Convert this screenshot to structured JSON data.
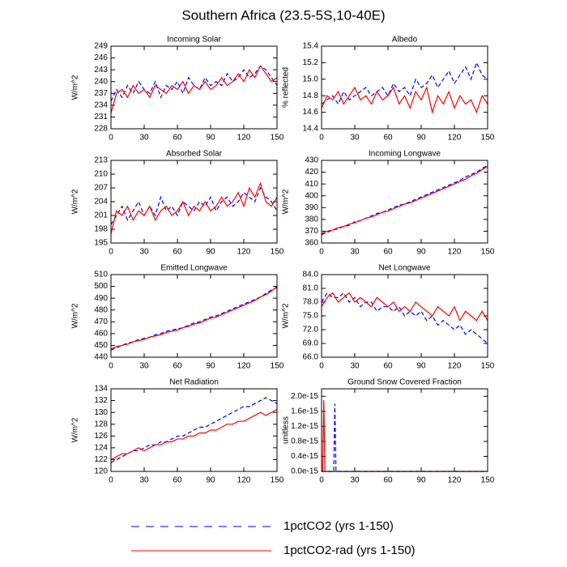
{
  "title": "Southern Africa (23.5-5S,10-40E)",
  "legend": [
    {
      "name": "1pctCO2 (yrs 1-150)",
      "color": "#0000ff",
      "dashed": true
    },
    {
      "name": "1pctCO2-rad (yrs 1-150)",
      "color": "#ff0000",
      "dashed": false
    }
  ],
  "chart_data": [
    {
      "type": "line",
      "title": "Incoming Solar",
      "ylabel": "W/m^2",
      "xlim": [
        0,
        150
      ],
      "xticks": [
        0,
        30,
        60,
        90,
        120,
        150
      ],
      "ylim": [
        228,
        249
      ],
      "yticks": [
        228,
        231,
        234,
        237,
        240,
        243,
        246,
        249
      ],
      "x": [
        0,
        5,
        10,
        15,
        20,
        25,
        30,
        35,
        40,
        45,
        50,
        55,
        60,
        65,
        70,
        75,
        80,
        85,
        90,
        95,
        100,
        105,
        110,
        115,
        120,
        125,
        130,
        135,
        140,
        145,
        150
      ],
      "series": [
        {
          "color": "#0000ff",
          "dashed": true,
          "values": [
            235,
            238,
            236,
            239,
            237,
            240,
            238,
            237,
            240,
            236,
            239,
            238,
            240,
            237,
            241,
            239,
            238,
            241,
            239,
            240,
            239,
            242,
            240,
            241,
            243,
            241,
            242,
            244,
            243,
            241,
            239
          ]
        },
        {
          "color": "#ff0000",
          "dashed": false,
          "values": [
            232,
            237,
            238,
            236,
            239,
            237,
            238,
            236,
            239,
            238,
            237,
            239,
            238,
            240,
            237,
            239,
            238,
            240,
            238,
            239,
            241,
            239,
            240,
            242,
            240,
            243,
            241,
            244,
            242,
            240,
            241
          ]
        }
      ]
    },
    {
      "type": "line",
      "title": "Albedo",
      "ylabel": "% reflected",
      "xlim": [
        0,
        150
      ],
      "xticks": [
        0,
        30,
        60,
        90,
        120,
        150
      ],
      "ylim": [
        14.4,
        15.4
      ],
      "yticks": [
        14.4,
        14.6,
        14.8,
        {
          "value": 15,
          "label": "15.0"
        },
        15.2,
        15.4
      ],
      "x": [
        0,
        5,
        10,
        15,
        20,
        25,
        30,
        35,
        40,
        45,
        50,
        55,
        60,
        65,
        70,
        75,
        80,
        85,
        90,
        95,
        100,
        105,
        110,
        115,
        120,
        125,
        130,
        135,
        140,
        145,
        150
      ],
      "series": [
        {
          "color": "#0000ff",
          "dashed": true,
          "values": [
            14.7,
            14.75,
            14.8,
            14.7,
            14.85,
            14.75,
            14.8,
            14.85,
            14.9,
            14.8,
            14.85,
            14.9,
            14.8,
            14.95,
            14.85,
            14.9,
            14.8,
            15.0,
            14.9,
            14.95,
            15.05,
            14.9,
            15.0,
            15.1,
            14.95,
            15.05,
            15.15,
            15.0,
            15.2,
            15.05,
            15.0
          ]
        },
        {
          "color": "#ff0000",
          "dashed": false,
          "values": [
            14.65,
            14.8,
            14.75,
            14.85,
            14.7,
            14.8,
            14.9,
            14.75,
            14.8,
            14.7,
            14.85,
            14.75,
            14.8,
            14.9,
            14.7,
            14.8,
            14.65,
            14.85,
            14.75,
            14.9,
            14.6,
            14.8,
            14.7,
            14.85,
            14.65,
            14.8,
            14.7,
            14.75,
            14.6,
            14.8,
            14.7
          ]
        }
      ]
    },
    {
      "type": "line",
      "title": "Absorbed Solar",
      "ylabel": "W/m^2",
      "xlim": [
        0,
        150
      ],
      "xticks": [
        0,
        30,
        60,
        90,
        120,
        150
      ],
      "ylim": [
        195,
        213
      ],
      "yticks": [
        195,
        198,
        201,
        204,
        207,
        210,
        213
      ],
      "x": [
        0,
        5,
        10,
        15,
        20,
        25,
        30,
        35,
        40,
        45,
        50,
        55,
        60,
        65,
        70,
        75,
        80,
        85,
        90,
        95,
        100,
        105,
        110,
        115,
        120,
        125,
        130,
        135,
        140,
        145,
        150
      ],
      "series": [
        {
          "color": "#0000ff",
          "dashed": true,
          "values": [
            199,
            201,
            203,
            200,
            202,
            204,
            201,
            203,
            201,
            205,
            202,
            203,
            201,
            204,
            203,
            202,
            204,
            203,
            205,
            202,
            204,
            205,
            203,
            204,
            206,
            205,
            204,
            207,
            205,
            204,
            202
          ]
        },
        {
          "color": "#ff0000",
          "dashed": false,
          "values": [
            197,
            202,
            201,
            203,
            200,
            202,
            201,
            203,
            200,
            202,
            203,
            201,
            202,
            204,
            201,
            203,
            202,
            204,
            202,
            203,
            205,
            203,
            204,
            206,
            203,
            207,
            205,
            208,
            204,
            203,
            205
          ]
        }
      ]
    },
    {
      "type": "line",
      "title": "Incoming Longwave",
      "ylabel": "W/m^2",
      "xlim": [
        0,
        150
      ],
      "xticks": [
        0,
        30,
        60,
        90,
        120,
        150
      ],
      "ylim": [
        360,
        430
      ],
      "yticks": [
        360,
        370,
        380,
        390,
        400,
        410,
        420,
        430
      ],
      "x": [
        0,
        5,
        10,
        15,
        20,
        25,
        30,
        35,
        40,
        45,
        50,
        55,
        60,
        65,
        70,
        75,
        80,
        85,
        90,
        95,
        100,
        105,
        110,
        115,
        120,
        125,
        130,
        135,
        140,
        145,
        150
      ],
      "series": [
        {
          "color": "#0000ff",
          "dashed": true,
          "values": [
            367,
            369,
            371,
            372,
            374,
            375,
            378,
            379,
            381,
            383,
            385,
            386,
            388,
            390,
            392,
            393,
            395,
            397,
            399,
            401,
            403,
            405,
            407,
            409,
            411,
            413,
            416,
            418,
            420,
            423,
            426
          ]
        },
        {
          "color": "#ff0000",
          "dashed": false,
          "values": [
            368,
            370,
            371,
            373,
            374,
            376,
            377,
            379,
            381,
            382,
            384,
            386,
            387,
            389,
            391,
            393,
            394,
            396,
            398,
            400,
            402,
            404,
            406,
            408,
            410,
            412,
            414,
            417,
            419,
            422,
            425
          ]
        }
      ]
    },
    {
      "type": "line",
      "title": "Emitted Longwave",
      "ylabel": "W/m^2",
      "xlim": [
        0,
        150
      ],
      "xticks": [
        0,
        30,
        60,
        90,
        120,
        150
      ],
      "ylim": [
        440,
        510
      ],
      "yticks": [
        440,
        450,
        460,
        470,
        480,
        490,
        500,
        510
      ],
      "x": [
        0,
        5,
        10,
        15,
        20,
        25,
        30,
        35,
        40,
        45,
        50,
        55,
        60,
        65,
        70,
        75,
        80,
        85,
        90,
        95,
        100,
        105,
        110,
        115,
        120,
        125,
        130,
        135,
        140,
        145,
        150
      ],
      "series": [
        {
          "color": "#0000ff",
          "dashed": true,
          "values": [
            446,
            448,
            450,
            452,
            453,
            455,
            456,
            457,
            459,
            460,
            462,
            463,
            464,
            465,
            467,
            469,
            470,
            472,
            474,
            475,
            477,
            479,
            481,
            483,
            485,
            487,
            489,
            491,
            494,
            497,
            499
          ]
        },
        {
          "color": "#ff0000",
          "dashed": false,
          "values": [
            447,
            449,
            450,
            451,
            453,
            454,
            455,
            457,
            458,
            459,
            461,
            462,
            463,
            465,
            466,
            468,
            469,
            471,
            473,
            474,
            476,
            478,
            480,
            482,
            484,
            486,
            488,
            491,
            493,
            496,
            500
          ]
        }
      ]
    },
    {
      "type": "line",
      "title": "Net Longwave",
      "ylabel": "W/m^2",
      "xlim": [
        0,
        150
      ],
      "xticks": [
        0,
        30,
        60,
        90,
        120,
        150
      ],
      "ylim": [
        66,
        84
      ],
      "yticks": [
        {
          "value": 66,
          "label": "66.0"
        },
        {
          "value": 69,
          "label": "69.0"
        },
        {
          "value": 72,
          "label": "72.0"
        },
        {
          "value": 75,
          "label": "75.0"
        },
        {
          "value": 78,
          "label": "78.0"
        },
        {
          "value": 81,
          "label": "81.0"
        },
        {
          "value": 84,
          "label": "84.0"
        }
      ],
      "x": [
        0,
        5,
        10,
        15,
        20,
        25,
        30,
        35,
        40,
        45,
        50,
        55,
        60,
        65,
        70,
        75,
        80,
        85,
        90,
        95,
        100,
        105,
        110,
        115,
        120,
        125,
        130,
        135,
        140,
        145,
        150
      ],
      "series": [
        {
          "color": "#0000ff",
          "dashed": true,
          "values": [
            78,
            80,
            79,
            79,
            80,
            78,
            79,
            77,
            78,
            78,
            76,
            77,
            77,
            76,
            77,
            75,
            76,
            75,
            76,
            74,
            75,
            73,
            74,
            73,
            72,
            73,
            71,
            72,
            71,
            70,
            69
          ]
        },
        {
          "color": "#ff0000",
          "dashed": false,
          "values": [
            77,
            79,
            80,
            78,
            79,
            80,
            78,
            79,
            78,
            77,
            79,
            78,
            77,
            78,
            76,
            77,
            76,
            78,
            77,
            76,
            75,
            77,
            76,
            75,
            77,
            74,
            76,
            75,
            74,
            76,
            74
          ]
        }
      ]
    },
    {
      "type": "line",
      "title": "Net Radiation",
      "ylabel": "W/m^2",
      "xlim": [
        0,
        150
      ],
      "xticks": [
        0,
        30,
        60,
        90,
        120,
        150
      ],
      "ylim": [
        120,
        134
      ],
      "yticks": [
        120,
        122,
        124,
        126,
        128,
        130,
        132,
        134
      ],
      "x": [
        0,
        5,
        10,
        15,
        20,
        25,
        30,
        35,
        40,
        45,
        50,
        55,
        60,
        65,
        70,
        75,
        80,
        85,
        90,
        95,
        100,
        105,
        110,
        115,
        120,
        125,
        130,
        135,
        140,
        145,
        150
      ],
      "series": [
        {
          "color": "#0000ff",
          "dashed": true,
          "values": [
            121.5,
            122,
            122.5,
            123,
            123.5,
            123.5,
            124,
            124.5,
            124.5,
            125,
            125,
            125.5,
            126,
            126,
            126.5,
            127,
            127.5,
            127.5,
            128,
            128.5,
            129,
            129.5,
            130,
            130.5,
            131,
            131,
            131.5,
            132,
            132.5,
            132,
            131.5
          ]
        },
        {
          "color": "#ff0000",
          "dashed": false,
          "values": [
            122,
            122.5,
            123,
            123,
            123.5,
            124,
            123.5,
            124,
            124.5,
            124.5,
            125,
            125,
            125.5,
            125.5,
            126,
            126,
            126.5,
            126.5,
            127,
            127,
            127.5,
            128,
            128,
            128.5,
            128.5,
            129,
            129.5,
            130,
            129.5,
            130,
            130.5
          ]
        }
      ]
    },
    {
      "type": "line",
      "title": "Ground Snow Covered Fraction",
      "ylabel": "unitless",
      "xlim": [
        0,
        150
      ],
      "xticks": [
        0,
        30,
        60,
        90,
        120,
        150
      ],
      "ylim": [
        0,
        2.2e-15
      ],
      "yticks": [
        {
          "value": 0,
          "label": "0.0e-15"
        },
        {
          "value": 4e-16,
          "label": "0.4e-15"
        },
        {
          "value": 8e-16,
          "label": "0.8e-15"
        },
        {
          "value": 1.2e-15,
          "label": "1.2e-15"
        },
        {
          "value": 1.6e-15,
          "label": "1.6e-15"
        },
        {
          "value": 2e-15,
          "label": "2.0e-15"
        }
      ],
      "x": [
        0,
        1,
        2,
        3,
        11,
        12,
        13,
        150
      ],
      "series": [
        {
          "color": "#0000ff",
          "dashed": true,
          "values": [
            0,
            0,
            0,
            0,
            0,
            1.8e-15,
            0,
            0
          ]
        },
        {
          "color": "#ff0000",
          "dashed": false,
          "values": [
            0,
            0,
            1.9e-15,
            0,
            0,
            0,
            0,
            0
          ]
        }
      ]
    }
  ]
}
